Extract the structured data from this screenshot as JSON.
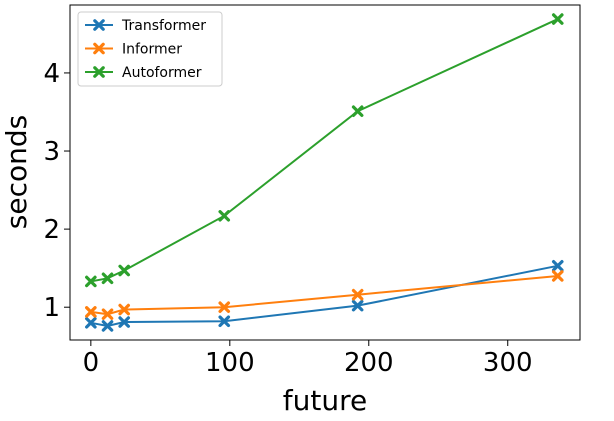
{
  "chart_data": {
    "type": "line",
    "xlabel": "future",
    "ylabel": "seconds",
    "xlim": [
      -15,
      352
    ],
    "ylim": [
      0.58,
      4.87
    ],
    "xticks": [
      0,
      100,
      200,
      300
    ],
    "yticks": [
      1,
      2,
      3,
      4
    ],
    "grid": false,
    "legend_position": "top-left",
    "series": [
      {
        "name": "Transformer",
        "color": "#1f77b4",
        "marker": "X",
        "x": [
          0,
          12,
          24,
          96,
          192,
          336
        ],
        "y": [
          0.8,
          0.76,
          0.81,
          0.82,
          1.02,
          1.53
        ]
      },
      {
        "name": "Informer",
        "color": "#ff7f0e",
        "marker": "X",
        "x": [
          0,
          12,
          24,
          96,
          192,
          336
        ],
        "y": [
          0.94,
          0.91,
          0.97,
          1.0,
          1.16,
          1.4
        ]
      },
      {
        "name": "Autoformer",
        "color": "#2ca02c",
        "marker": "X",
        "x": [
          0,
          12,
          24,
          96,
          192,
          336
        ],
        "y": [
          1.33,
          1.37,
          1.47,
          2.17,
          3.51,
          4.69
        ]
      }
    ]
  }
}
